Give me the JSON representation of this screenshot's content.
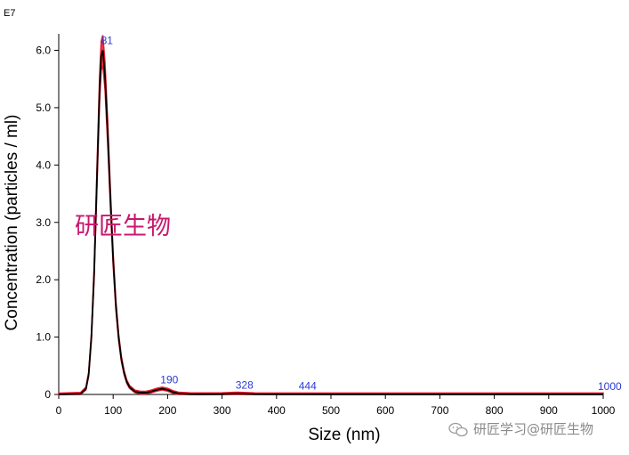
{
  "chart_data": {
    "type": "line",
    "xlabel": "Size (nm)",
    "ylabel": "Concentration (particles / ml)",
    "y_scale_note": "E7",
    "xlim": [
      0,
      1000
    ],
    "ylim": [
      0,
      6.5
    ],
    "x_ticks": [
      0,
      100,
      200,
      300,
      400,
      500,
      600,
      700,
      800,
      900,
      1000
    ],
    "y_ticks": [
      0,
      1.0,
      2.0,
      3.0,
      4.0,
      5.0,
      6.0
    ],
    "y_tick_labels": [
      "0",
      "1.0",
      "2.0",
      "3.0",
      "4.0",
      "5.0",
      "6.0"
    ],
    "grid": false,
    "series": [
      {
        "x": [
          0,
          40,
          50,
          55,
          60,
          65,
          70,
          75,
          78,
          81,
          85,
          90,
          95,
          100,
          105,
          110,
          115,
          120,
          125,
          130,
          140,
          150,
          160,
          170,
          180,
          190,
          200,
          210,
          220,
          240,
          260,
          300,
          320,
          328,
          340,
          360,
          400,
          444,
          500,
          600,
          700,
          800,
          900,
          1000
        ],
        "y": [
          0,
          0.01,
          0.1,
          0.35,
          1.0,
          2.1,
          3.7,
          5.3,
          5.9,
          6.0,
          5.55,
          4.55,
          3.4,
          2.35,
          1.55,
          1.0,
          0.62,
          0.38,
          0.22,
          0.13,
          0.05,
          0.03,
          0.03,
          0.05,
          0.08,
          0.1,
          0.08,
          0.04,
          0.015,
          0.005,
          0.003,
          0.005,
          0.012,
          0.015,
          0.01,
          0.004,
          0.002,
          0.002,
          0.001,
          0.001,
          0.001,
          0.001,
          0.001,
          0.001
        ],
        "color": "#000000",
        "error_band_color": "#e8192c"
      }
    ],
    "peak_labels": [
      {
        "text": "81",
        "x": 81,
        "y": 6.0
      },
      {
        "text": "190",
        "x": 190,
        "y": 0.1
      },
      {
        "text": "328",
        "x": 328,
        "y": 0.02
      },
      {
        "text": "444",
        "x": 444,
        "y": 0.005
      },
      {
        "text": "1000",
        "x": 1000,
        "y": 0.001
      }
    ],
    "peak_label_color": "#2a3bd6"
  },
  "overlay_text": {
    "text": "研匠生物",
    "color": "#c8186e"
  },
  "watermark": {
    "text": "研匠学习@研匠生物",
    "icon": "wechat-icon"
  }
}
